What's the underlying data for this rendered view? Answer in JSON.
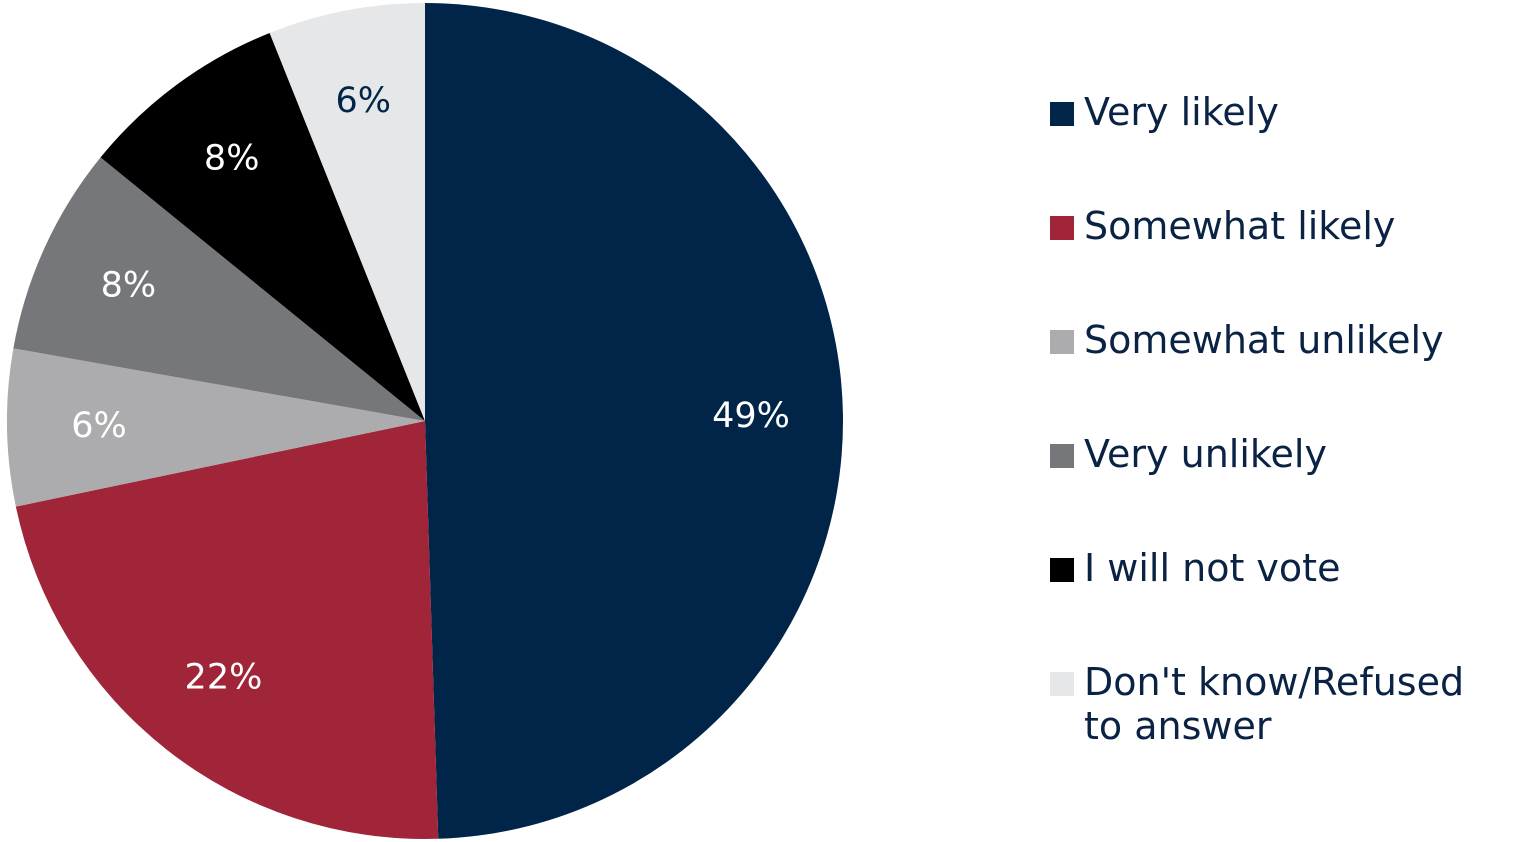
{
  "chart_data": {
    "type": "pie",
    "title": "",
    "slices": [
      {
        "label": "Very likely",
        "value": 49,
        "display": "49%",
        "color": "#002548",
        "text_color": "#ffffff"
      },
      {
        "label": "Somewhat likely",
        "value": 22,
        "display": "22%",
        "color": "#a12539",
        "text_color": "#ffffff"
      },
      {
        "label": "Somewhat unlikely",
        "value": 6,
        "display": "6%",
        "color": "#acacae",
        "text_color": "#ffffff"
      },
      {
        "label": "Very unlikely",
        "value": 8,
        "display": "8%",
        "color": "#76777b",
        "text_color": "#ffffff"
      },
      {
        "label": "I will not vote",
        "value": 8,
        "display": "8%",
        "color": "#000000",
        "text_color": "#ffffff"
      },
      {
        "label": "Don't know/Refused to answer",
        "value": 6,
        "display": "6%",
        "color": "#e6e7e9",
        "text_color": "#002548"
      }
    ],
    "legend_position": "right",
    "start": "12 o'clock",
    "direction": "clockwise"
  }
}
